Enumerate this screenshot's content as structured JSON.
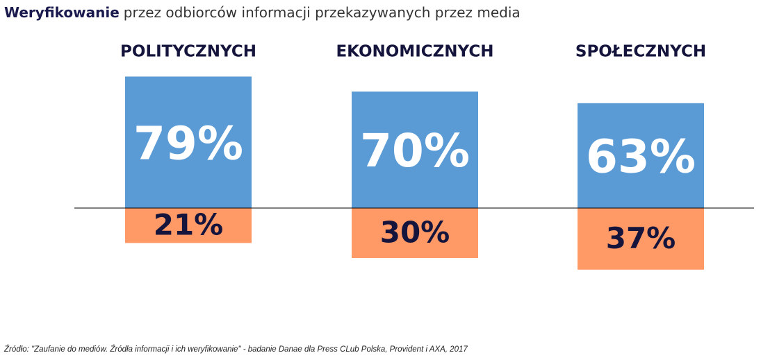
{
  "chart_data": {
    "type": "bar",
    "title_parts": [
      "Weryfikowanie",
      "przez odbiorców informacji przekazywanych przez media"
    ],
    "categories": [
      "POLITYCZNYCH",
      "EKONOMICZNYCH",
      "SPOŁECZNYCH"
    ],
    "series": [
      {
        "color": "#5b9bd5",
        "direction": "up",
        "values": [
          79,
          70,
          63
        ],
        "value_labels": [
          "79%",
          "70%",
          "63%"
        ],
        "label_color": "#ffffff"
      },
      {
        "color": "#ff9966",
        "direction": "down",
        "values": [
          21,
          30,
          37
        ],
        "value_labels": [
          "21%",
          "30%",
          "37%"
        ],
        "label_color": "#14143c"
      }
    ],
    "source": "Źródło: \"Zaufanie do mediów. Źródła informacji i ich weryfikowanie\" - badanie Danae dla Press CLub Polska, Provident i AXA, 2017"
  }
}
